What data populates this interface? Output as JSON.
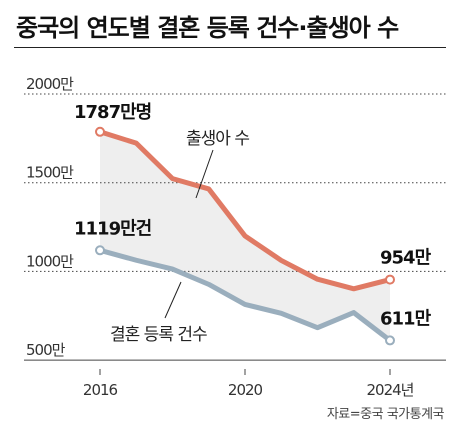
{
  "title": "중국의 연도별 결혼 등록 건수·출생아 수",
  "source": "자료=중국 국가통계국",
  "colors": {
    "births": "#e07a64",
    "marriages": "#9aaebd",
    "area": "#eeeeee"
  },
  "chart_data": {
    "type": "line",
    "title": "중국의 연도별 결혼 등록 건수·출생아 수",
    "x": [
      2016,
      2017,
      2018,
      2019,
      2020,
      2021,
      2022,
      2023,
      2024
    ],
    "x_tick_values": [
      2016,
      2020,
      2024
    ],
    "x_tick_labels": [
      "2016",
      "2020",
      "2024년"
    ],
    "y_ticks": [
      500,
      1000,
      1500,
      2000
    ],
    "y_tick_labels": [
      "500만",
      "1000만",
      "1500만",
      "2000만"
    ],
    "ylim": [
      450,
      2000
    ],
    "grid": true,
    "series": [
      {
        "name": "출생아 수",
        "values": [
          1787,
          1723,
          1523,
          1465,
          1200,
          1062,
          956,
          902,
          954
        ]
      },
      {
        "name": "결혼 등록 건수",
        "values": [
          1119,
          1063,
          1013,
          927,
          814,
          764,
          683,
          768,
          611
        ]
      }
    ],
    "annotations": [
      {
        "text": "1787만명",
        "series": 0,
        "index": 0
      },
      {
        "text": "954만",
        "series": 0,
        "index": 8
      },
      {
        "text": "1119만건",
        "series": 1,
        "index": 0
      },
      {
        "text": "611만",
        "series": 1,
        "index": 8
      }
    ]
  }
}
